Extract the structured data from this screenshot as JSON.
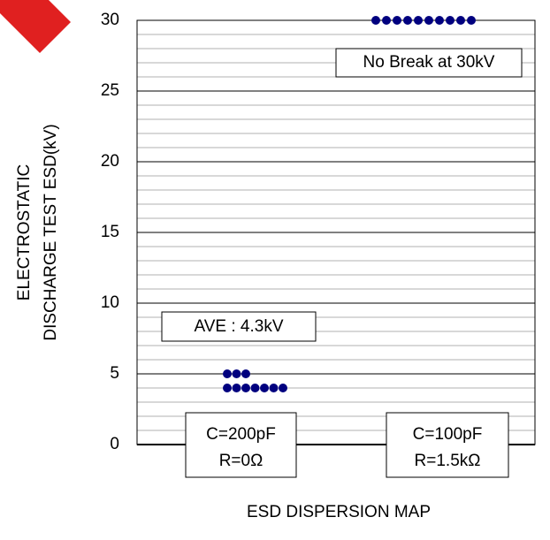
{
  "chart_data": {
    "type": "dot",
    "ylabel": [
      "ELECTROSTATIC",
      "DISCHARGE TEST ESD(kV)"
    ],
    "xlabel": "ESD DISPERSION MAP",
    "categories": [
      [
        "C=200pF",
        "R=0Ω"
      ],
      [
        "C=100pF",
        "R=1.5kΩ"
      ]
    ],
    "values": [
      [
        5,
        5,
        5,
        4,
        4,
        4,
        4,
        4,
        4,
        4
      ],
      [
        30,
        30,
        30,
        30,
        30,
        30,
        30,
        30,
        30,
        30
      ]
    ],
    "color": "#00007f",
    "ylim": [
      0,
      30
    ],
    "yticks": [
      0,
      5,
      10,
      15,
      20,
      25,
      30
    ],
    "minor_yticks": [
      1,
      2,
      3,
      4,
      6,
      7,
      8,
      9,
      11,
      12,
      13,
      14,
      16,
      17,
      18,
      19,
      21,
      22,
      23,
      24,
      26,
      27,
      28,
      29
    ],
    "grid": true,
    "annotations": [
      "AVE : 4.3kV",
      "No Break at 30kV"
    ]
  }
}
